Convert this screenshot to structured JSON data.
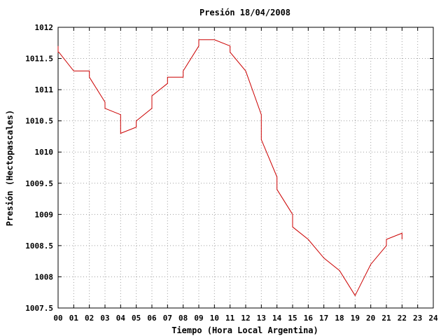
{
  "chart_data": {
    "type": "line",
    "title": "Presión 18/04/2008",
    "xlabel": "Tiempo (Hora Local Argentina)",
    "ylabel": "Presión (Hectopascales)",
    "xlim": [
      0,
      24
    ],
    "ylim": [
      1007.5,
      1012
    ],
    "grid": true,
    "line_color": "#cc0000",
    "x_ticks": [
      "00",
      "01",
      "02",
      "03",
      "04",
      "05",
      "06",
      "07",
      "08",
      "09",
      "10",
      "11",
      "12",
      "13",
      "14",
      "15",
      "16",
      "17",
      "18",
      "19",
      "20",
      "21",
      "22",
      "23",
      "24"
    ],
    "y_ticks": [
      "1007.5",
      "1008",
      "1008.5",
      "1009",
      "1009.5",
      "1010",
      "1010.5",
      "1011",
      "1011.5",
      "1012"
    ],
    "series": [
      {
        "x": [
          0.0,
          0.0,
          0.05,
          1.0,
          2.0,
          2.0,
          3.0,
          3.0,
          4.0,
          4.0,
          5.0,
          5.0,
          6.0,
          6.0,
          7.0,
          7.0,
          8.0,
          8.0,
          9.0,
          9.0,
          10.0,
          11.0,
          11.0,
          12.0,
          13.0,
          13.0,
          14.0,
          14.0,
          15.0,
          15.0,
          16.0,
          17.0,
          18.0,
          19.0,
          20.0,
          21.0,
          21.0,
          22.0,
          22.0
        ],
        "y": [
          1011.7,
          1011.6,
          1011.6,
          1011.3,
          1011.3,
          1011.2,
          1010.8,
          1010.7,
          1010.6,
          1010.3,
          1010.4,
          1010.5,
          1010.7,
          1010.9,
          1011.1,
          1011.2,
          1011.2,
          1011.3,
          1011.7,
          1011.8,
          1011.8,
          1011.7,
          1011.6,
          1011.3,
          1010.6,
          1010.2,
          1009.6,
          1009.4,
          1009.0,
          1008.8,
          1008.6,
          1008.3,
          1008.1,
          1007.7,
          1008.2,
          1008.5,
          1008.6,
          1008.7,
          1008.6
        ]
      }
    ]
  }
}
